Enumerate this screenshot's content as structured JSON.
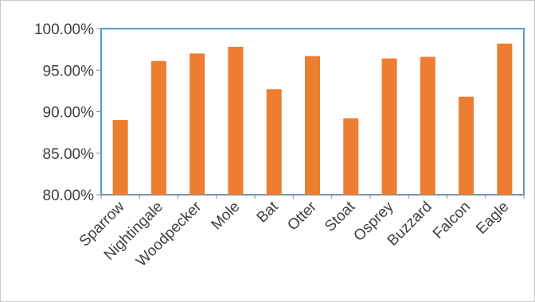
{
  "chart_data": {
    "type": "bar",
    "categories": [
      "Sparrow",
      "Nightingale",
      "Woodpecker",
      "Mole",
      "Bat",
      "Otter",
      "Stoat",
      "Osprey",
      "Buzzard",
      "Falcon",
      "Eagle"
    ],
    "values": [
      0.89,
      0.961,
      0.97,
      0.978,
      0.927,
      0.967,
      0.892,
      0.964,
      0.966,
      0.918,
      0.982
    ],
    "ylim": [
      0.8,
      1.0
    ],
    "yticks": [
      0.8,
      0.85,
      0.9,
      0.95,
      1.0
    ],
    "ytick_labels": [
      "80.00%",
      "85.00%",
      "90.00%",
      "95.00%",
      "100.00%"
    ],
    "title": "",
    "xlabel": "",
    "ylabel": "",
    "grid": false,
    "legend": false,
    "bar_color": "#ED7D31",
    "plot_border_color": "#5B9BD5"
  }
}
